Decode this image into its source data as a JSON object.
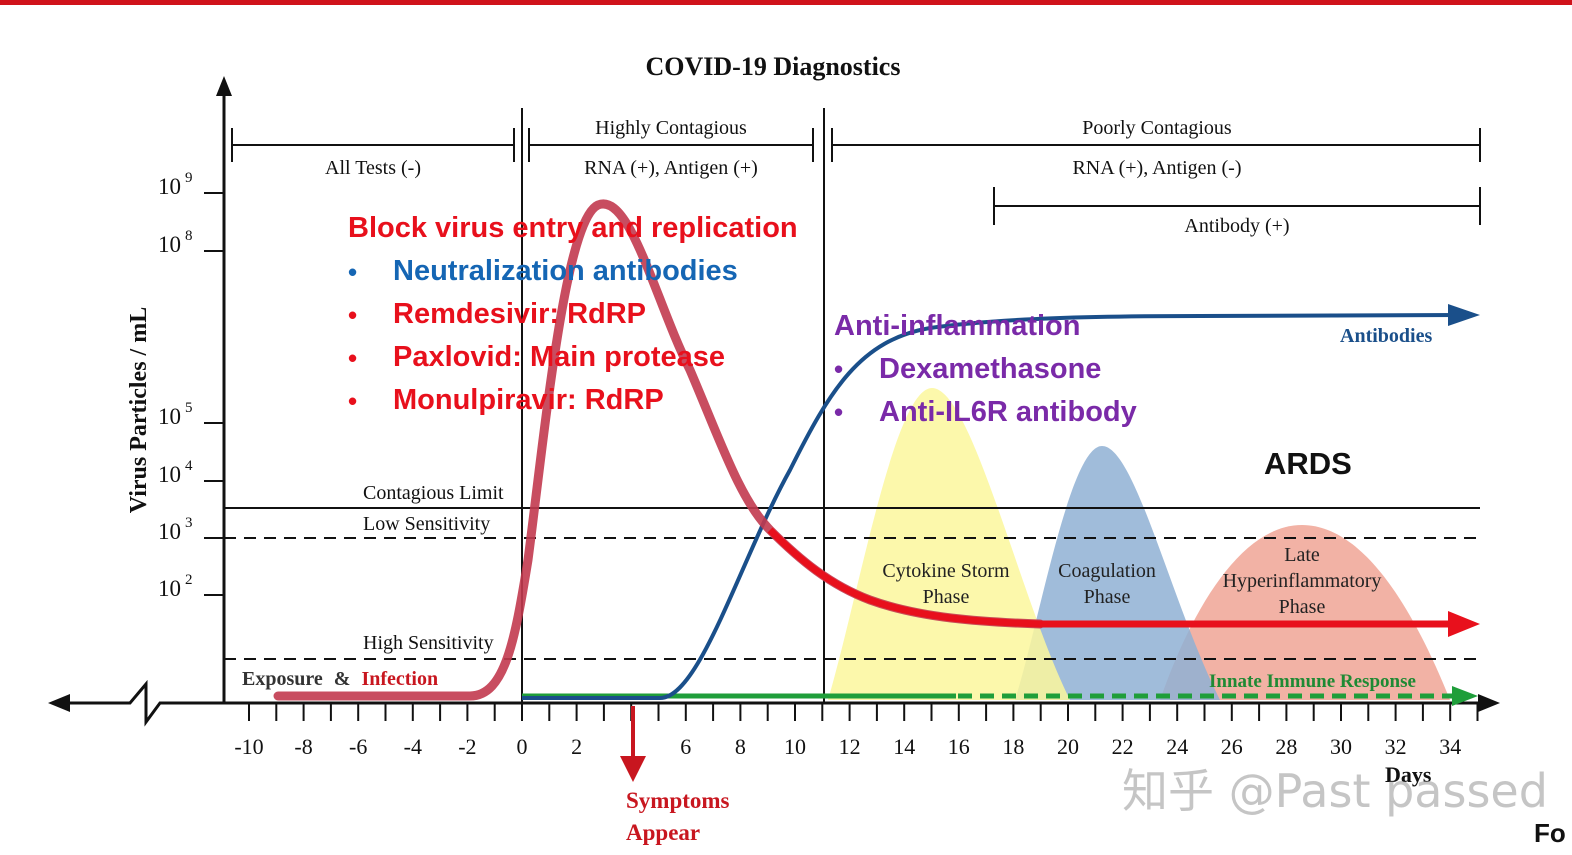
{
  "title": "COVID-19 Diagnostics",
  "y_axis": {
    "label": "Virus Particles / mL",
    "ticks": [
      {
        "base": "10",
        "exp": "9"
      },
      {
        "base": "10",
        "exp": "8"
      },
      {
        "base": "10",
        "exp": "5"
      },
      {
        "base": "10",
        "exp": "4"
      },
      {
        "base": "10",
        "exp": "3"
      },
      {
        "base": "10",
        "exp": "2"
      }
    ]
  },
  "x_axis": {
    "label": "Days",
    "ticks": [
      "-10",
      "-8",
      "-6",
      "-4",
      "-2",
      "0",
      "2",
      "6",
      "8",
      "10",
      "12",
      "14",
      "16",
      "18",
      "20",
      "22",
      "24",
      "26",
      "28",
      "30",
      "32",
      "34"
    ]
  },
  "periods": {
    "highly_contagious": "Highly Contagious",
    "poorly_contagious": "Poorly Contagious",
    "all_tests": "All Tests (-)",
    "rna_ag_pos": "RNA (+), Antigen (+)",
    "rna_ag_neg": "RNA (+), Antigen (-)",
    "antibody_pos": "Antibody (+)"
  },
  "thresholds": {
    "contagious_limit": "Contagious Limit",
    "low_sensitivity": "Low Sensitivity",
    "high_sensitivity": "High Sensitivity"
  },
  "curve_labels": {
    "antibodies": "Antibodies",
    "innate": "Innate Immune Response",
    "exposure": "Exposure",
    "amp": "&",
    "infection": "Infection",
    "symptoms_1": "Symptoms",
    "symptoms_2": "Appear"
  },
  "phases": {
    "cytokine_1": "Cytokine Storm",
    "cytokine_2": "Phase",
    "coag_1": "Coagulation",
    "coag_2": "Phase",
    "late_1": "Late",
    "late_2": "Hyperinflammatory",
    "late_3": "Phase"
  },
  "annotations": {
    "block_title": "Block virus entry and replication",
    "block_items": [
      "Neutralization antibodies",
      "Remdesivir: RdRP",
      "Paxlovid: Main protease",
      "Monulpiravir: RdRP"
    ],
    "anti_title": "Anti-inflammation",
    "anti_items": [
      "Dexamethasone",
      "Anti-IL6R antibody"
    ],
    "ards": "ARDS",
    "bullet": "•"
  },
  "watermark": "知乎 @Past passed",
  "corner_text": "Fo",
  "colors": {
    "top_bar": "#d0131b",
    "virus_curve": "#c23a4f",
    "virus_curve_tail": "#e8101c",
    "antibody_curve": "#1a4f8a",
    "innate_curve": "#1f9e3a",
    "cytokine_phase": "#fbf79c",
    "coagulation_phase": "#8fb0d4",
    "late_phase": "#f0a595",
    "block_title": "#e8101c",
    "neutralization": "#1566b4",
    "anti_inflammation": "#7a2aa8"
  }
}
